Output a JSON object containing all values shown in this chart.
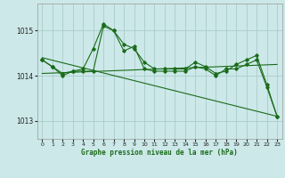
{
  "background_color": "#cce8e8",
  "grid_color": "#aacccc",
  "line_color": "#1a6b1a",
  "xlabel": "Graphe pression niveau de la mer (hPa)",
  "xlim": [
    -0.5,
    23.5
  ],
  "ylim": [
    1012.6,
    1015.6
  ],
  "yticks": [
    1013,
    1014,
    1015
  ],
  "xticks": [
    0,
    1,
    2,
    3,
    4,
    5,
    6,
    7,
    8,
    9,
    10,
    11,
    12,
    13,
    14,
    15,
    16,
    17,
    18,
    19,
    20,
    21,
    22,
    23
  ],
  "series1_x": [
    0,
    1,
    2,
    3,
    4,
    5,
    6,
    7,
    8,
    9,
    10,
    11,
    12,
    13,
    14,
    15,
    16,
    17,
    18,
    19,
    20,
    21,
    22,
    23
  ],
  "series1_y": [
    1014.35,
    1014.2,
    1014.05,
    1014.1,
    1014.15,
    1014.6,
    1015.15,
    1015.0,
    1014.7,
    1014.6,
    1014.3,
    1014.15,
    1014.15,
    1014.15,
    1014.15,
    1014.3,
    1014.2,
    1014.05,
    1014.1,
    1014.25,
    1014.35,
    1014.45,
    1013.8,
    1013.1
  ],
  "series2_x": [
    0,
    1,
    2,
    3,
    4,
    5,
    6,
    7,
    8,
    9,
    10,
    11,
    12,
    13,
    14,
    15,
    16,
    17,
    18,
    19,
    20,
    21,
    22,
    23
  ],
  "series2_y": [
    1014.35,
    1014.2,
    1014.05,
    1014.1,
    1014.15,
    1014.6,
    1015.15,
    1015.0,
    1014.7,
    1014.6,
    1014.3,
    1014.15,
    1014.15,
    1014.15,
    1014.15,
    1014.3,
    1014.2,
    1014.05,
    1014.1,
    1014.25,
    1014.35,
    1014.45,
    1013.8,
    1013.1
  ],
  "series3_x": [
    0,
    23
  ],
  "series3_y": [
    1014.4,
    1013.1
  ],
  "series4_x": [
    0,
    23
  ],
  "series4_y": [
    1014.05,
    1014.25
  ],
  "figwidth": 3.2,
  "figheight": 2.0,
  "dpi": 100
}
